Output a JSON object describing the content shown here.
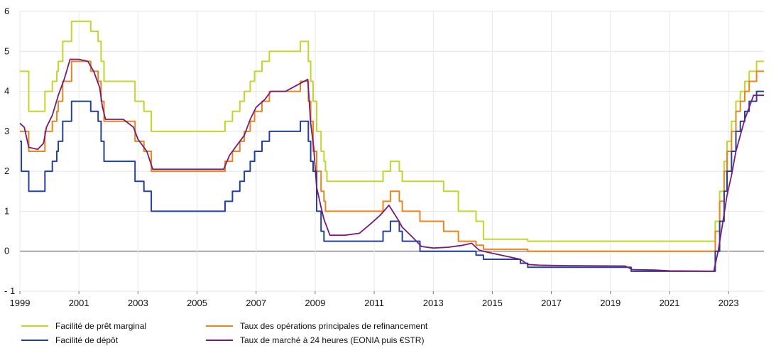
{
  "chart_data": {
    "type": "line",
    "ylim": [
      -1,
      6
    ],
    "xlim": [
      1999,
      2024.2
    ],
    "yticks": [
      "- 1",
      "0",
      "1",
      "2",
      "3",
      "4",
      "5",
      "6"
    ],
    "xticks": [
      "1999",
      "2001",
      "2003",
      "2005",
      "2007",
      "2009",
      "2011",
      "2013",
      "2015",
      "2017",
      "2019",
      "2021",
      "2023"
    ],
    "grid": true,
    "legend_position": "bottom",
    "series": [
      {
        "name": "Facilité de prêt marginal",
        "color": "#c3d62b",
        "step": true,
        "points": [
          [
            1999.0,
            4.5
          ],
          [
            1999.3,
            3.5
          ],
          [
            1999.85,
            4.0
          ],
          [
            2000.1,
            4.25
          ],
          [
            2000.25,
            4.5
          ],
          [
            2000.3,
            4.75
          ],
          [
            2000.45,
            5.25
          ],
          [
            2000.75,
            5.75
          ],
          [
            2001.4,
            5.5
          ],
          [
            2001.65,
            5.25
          ],
          [
            2001.75,
            4.75
          ],
          [
            2001.85,
            4.25
          ],
          [
            2002.9,
            3.75
          ],
          [
            2003.2,
            3.5
          ],
          [
            2003.45,
            3.0
          ],
          [
            2005.95,
            3.25
          ],
          [
            2006.2,
            3.5
          ],
          [
            2006.45,
            3.75
          ],
          [
            2006.6,
            4.0
          ],
          [
            2006.8,
            4.25
          ],
          [
            2006.95,
            4.5
          ],
          [
            2007.2,
            4.75
          ],
          [
            2007.45,
            5.0
          ],
          [
            2008.5,
            5.25
          ],
          [
            2008.77,
            4.75
          ],
          [
            2008.85,
            4.25
          ],
          [
            2008.93,
            3.75
          ],
          [
            2009.05,
            3.0
          ],
          [
            2009.2,
            2.5
          ],
          [
            2009.3,
            2.25
          ],
          [
            2009.35,
            2.0
          ],
          [
            2009.4,
            1.75
          ],
          [
            2011.3,
            2.0
          ],
          [
            2011.55,
            2.25
          ],
          [
            2011.85,
            2.0
          ],
          [
            2011.95,
            1.75
          ],
          [
            2013.35,
            1.5
          ],
          [
            2013.85,
            1.0
          ],
          [
            2014.45,
            0.75
          ],
          [
            2014.7,
            0.3
          ],
          [
            2015.95,
            0.3
          ],
          [
            2016.2,
            0.25
          ],
          [
            2022.55,
            0.75
          ],
          [
            2022.7,
            1.5
          ],
          [
            2022.85,
            2.25
          ],
          [
            2022.95,
            2.75
          ],
          [
            2023.1,
            3.25
          ],
          [
            2023.25,
            3.75
          ],
          [
            2023.4,
            4.0
          ],
          [
            2023.55,
            4.25
          ],
          [
            2023.7,
            4.5
          ],
          [
            2023.95,
            4.75
          ],
          [
            2024.2,
            4.75
          ]
        ]
      },
      {
        "name": "Taux des opérations principales de refinancement",
        "color": "#e8851c",
        "step": true,
        "points": [
          [
            1999.0,
            3.0
          ],
          [
            1999.3,
            2.5
          ],
          [
            1999.85,
            3.0
          ],
          [
            2000.1,
            3.25
          ],
          [
            2000.25,
            3.5
          ],
          [
            2000.3,
            3.75
          ],
          [
            2000.45,
            4.25
          ],
          [
            2000.75,
            4.75
          ],
          [
            2001.4,
            4.5
          ],
          [
            2001.65,
            4.25
          ],
          [
            2001.75,
            3.75
          ],
          [
            2001.85,
            3.25
          ],
          [
            2002.9,
            2.75
          ],
          [
            2003.2,
            2.5
          ],
          [
            2003.45,
            2.0
          ],
          [
            2005.95,
            2.25
          ],
          [
            2006.2,
            2.5
          ],
          [
            2006.45,
            2.75
          ],
          [
            2006.6,
            3.0
          ],
          [
            2006.8,
            3.25
          ],
          [
            2006.95,
            3.5
          ],
          [
            2007.2,
            3.75
          ],
          [
            2007.45,
            4.0
          ],
          [
            2008.5,
            4.25
          ],
          [
            2008.77,
            3.75
          ],
          [
            2008.85,
            3.25
          ],
          [
            2008.93,
            2.5
          ],
          [
            2009.05,
            2.0
          ],
          [
            2009.2,
            1.5
          ],
          [
            2009.3,
            1.25
          ],
          [
            2009.35,
            1.0
          ],
          [
            2011.3,
            1.25
          ],
          [
            2011.55,
            1.5
          ],
          [
            2011.85,
            1.25
          ],
          [
            2011.95,
            1.0
          ],
          [
            2012.55,
            0.75
          ],
          [
            2013.35,
            0.5
          ],
          [
            2013.85,
            0.25
          ],
          [
            2014.45,
            0.15
          ],
          [
            2014.7,
            0.05
          ],
          [
            2016.2,
            0.0
          ],
          [
            2022.55,
            0.5
          ],
          [
            2022.7,
            1.25
          ],
          [
            2022.85,
            2.0
          ],
          [
            2022.95,
            2.5
          ],
          [
            2023.1,
            3.0
          ],
          [
            2023.25,
            3.5
          ],
          [
            2023.4,
            3.75
          ],
          [
            2023.55,
            4.0
          ],
          [
            2023.7,
            4.25
          ],
          [
            2023.95,
            4.5
          ],
          [
            2024.2,
            4.5
          ]
        ]
      },
      {
        "name": "Facilité de dépôt",
        "color": "#23429a",
        "step": true,
        "points": [
          [
            1999.0,
            2.75
          ],
          [
            1999.05,
            2.0
          ],
          [
            1999.3,
            1.5
          ],
          [
            1999.85,
            2.0
          ],
          [
            2000.1,
            2.25
          ],
          [
            2000.25,
            2.5
          ],
          [
            2000.3,
            2.75
          ],
          [
            2000.45,
            3.25
          ],
          [
            2000.75,
            3.75
          ],
          [
            2001.4,
            3.5
          ],
          [
            2001.65,
            3.25
          ],
          [
            2001.75,
            2.75
          ],
          [
            2001.85,
            2.25
          ],
          [
            2002.9,
            1.75
          ],
          [
            2003.2,
            1.5
          ],
          [
            2003.45,
            1.0
          ],
          [
            2005.95,
            1.25
          ],
          [
            2006.2,
            1.5
          ],
          [
            2006.45,
            1.75
          ],
          [
            2006.6,
            2.0
          ],
          [
            2006.8,
            2.25
          ],
          [
            2006.95,
            2.5
          ],
          [
            2007.2,
            2.75
          ],
          [
            2007.45,
            3.0
          ],
          [
            2008.5,
            3.25
          ],
          [
            2008.77,
            2.75
          ],
          [
            2008.85,
            2.25
          ],
          [
            2008.93,
            2.0
          ],
          [
            2009.05,
            1.0
          ],
          [
            2009.2,
            0.5
          ],
          [
            2009.3,
            0.25
          ],
          [
            2011.3,
            0.5
          ],
          [
            2011.55,
            0.75
          ],
          [
            2011.85,
            0.5
          ],
          [
            2011.95,
            0.25
          ],
          [
            2012.55,
            0.0
          ],
          [
            2014.45,
            -0.1
          ],
          [
            2014.7,
            -0.2
          ],
          [
            2015.95,
            -0.3
          ],
          [
            2016.2,
            -0.4
          ],
          [
            2019.7,
            -0.5
          ],
          [
            2022.55,
            0.0
          ],
          [
            2022.7,
            0.75
          ],
          [
            2022.85,
            1.5
          ],
          [
            2022.95,
            2.0
          ],
          [
            2023.1,
            2.5
          ],
          [
            2023.25,
            3.0
          ],
          [
            2023.4,
            3.25
          ],
          [
            2023.55,
            3.5
          ],
          [
            2023.7,
            3.75
          ],
          [
            2023.95,
            4.0
          ],
          [
            2024.2,
            4.0
          ]
        ]
      },
      {
        "name": "Taux de marché à 24 heures (EONIA puis €STR)",
        "color": "#7a1a78",
        "step": false,
        "points": [
          [
            1999.0,
            3.2
          ],
          [
            1999.15,
            3.1
          ],
          [
            1999.3,
            2.6
          ],
          [
            1999.6,
            2.55
          ],
          [
            1999.8,
            2.7
          ],
          [
            1999.9,
            3.1
          ],
          [
            2000.1,
            3.4
          ],
          [
            2000.3,
            3.9
          ],
          [
            2000.5,
            4.3
          ],
          [
            2000.7,
            4.8
          ],
          [
            2001.0,
            4.8
          ],
          [
            2001.3,
            4.75
          ],
          [
            2001.5,
            4.5
          ],
          [
            2001.7,
            4.1
          ],
          [
            2001.8,
            3.6
          ],
          [
            2001.9,
            3.3
          ],
          [
            2002.5,
            3.3
          ],
          [
            2002.85,
            3.1
          ],
          [
            2003.0,
            2.8
          ],
          [
            2003.3,
            2.5
          ],
          [
            2003.5,
            2.05
          ],
          [
            2005.9,
            2.05
          ],
          [
            2006.1,
            2.4
          ],
          [
            2006.4,
            2.7
          ],
          [
            2006.6,
            2.9
          ],
          [
            2006.8,
            3.3
          ],
          [
            2007.0,
            3.6
          ],
          [
            2007.3,
            3.8
          ],
          [
            2007.5,
            4.0
          ],
          [
            2008.0,
            4.0
          ],
          [
            2008.5,
            4.2
          ],
          [
            2008.75,
            4.3
          ],
          [
            2008.85,
            3.2
          ],
          [
            2008.95,
            2.6
          ],
          [
            2009.05,
            1.6
          ],
          [
            2009.2,
            1.1
          ],
          [
            2009.3,
            0.8
          ],
          [
            2009.5,
            0.4
          ],
          [
            2010.0,
            0.4
          ],
          [
            2010.5,
            0.45
          ],
          [
            2010.9,
            0.7
          ],
          [
            2011.2,
            0.9
          ],
          [
            2011.5,
            1.15
          ],
          [
            2011.8,
            0.8
          ],
          [
            2011.95,
            0.6
          ],
          [
            2012.3,
            0.35
          ],
          [
            2012.6,
            0.12
          ],
          [
            2013.0,
            0.08
          ],
          [
            2013.5,
            0.1
          ],
          [
            2014.0,
            0.15
          ],
          [
            2014.3,
            0.2
          ],
          [
            2014.55,
            0.03
          ],
          [
            2014.8,
            -0.02
          ],
          [
            2015.3,
            -0.1
          ],
          [
            2015.95,
            -0.2
          ],
          [
            2016.2,
            -0.33
          ],
          [
            2016.6,
            -0.35
          ],
          [
            2017.5,
            -0.36
          ],
          [
            2019.5,
            -0.37
          ],
          [
            2019.75,
            -0.46
          ],
          [
            2020.5,
            -0.47
          ],
          [
            2021.0,
            -0.49
          ],
          [
            2022.5,
            -0.5
          ],
          [
            2022.65,
            0.0
          ],
          [
            2022.8,
            0.7
          ],
          [
            2022.95,
            1.4
          ],
          [
            2023.1,
            1.9
          ],
          [
            2023.25,
            2.5
          ],
          [
            2023.4,
            2.9
          ],
          [
            2023.55,
            3.3
          ],
          [
            2023.7,
            3.6
          ],
          [
            2023.85,
            3.9
          ],
          [
            2024.2,
            3.9
          ]
        ]
      }
    ]
  }
}
